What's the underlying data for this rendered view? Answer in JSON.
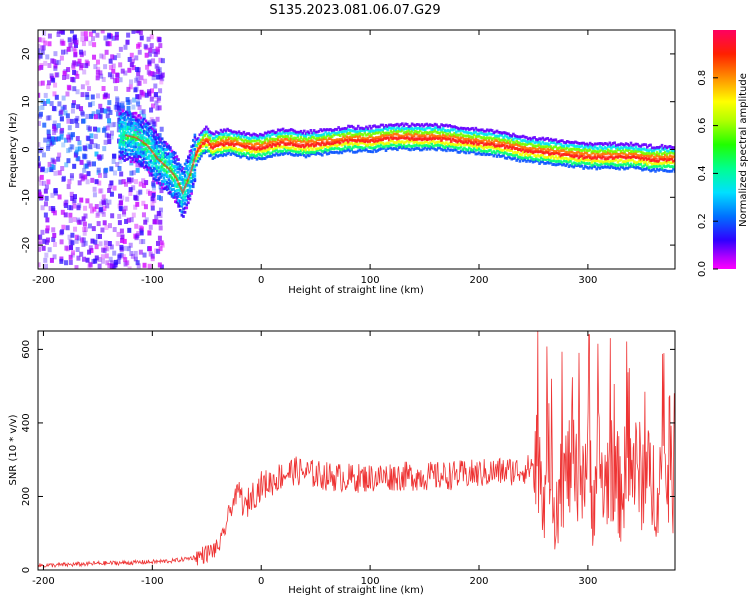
{
  "figure_title": "S135.2023.081.06.07.G29",
  "chart_data": [
    {
      "type": "heatmap",
      "title": "",
      "xlabel": "Height of straight line (km)",
      "ylabel": "Frequency (Hz)",
      "xlim": [
        -205,
        380
      ],
      "ylim": [
        -25,
        25
      ],
      "xticks": [
        -200,
        -100,
        0,
        100,
        200,
        300
      ],
      "yticks": [
        -20,
        -10,
        0,
        10,
        20
      ],
      "colorbar": {
        "label": "Normalized spectral amplitude",
        "range": [
          0.0,
          1.0
        ],
        "ticks": [
          0.0,
          0.2,
          0.4,
          0.6,
          0.8
        ],
        "tick_labels": [
          "0.0",
          "0.2",
          "0.4",
          "0.6",
          "0.8"
        ],
        "colormap": "gist_rainbow_r"
      },
      "main_trace": {
        "description_note": "Doppler frequency ridge (Hz) vs height (km)",
        "x": [
          -125,
          -115,
          -105,
          -95,
          -85,
          -78,
          -72,
          -65,
          -60,
          -55,
          -50,
          -45,
          -40,
          -30,
          -20,
          -10,
          0,
          10,
          20,
          40,
          60,
          80,
          100,
          120,
          140,
          160,
          180,
          200,
          220,
          240,
          260,
          280,
          300,
          320,
          340,
          360,
          378
        ],
        "y": [
          3,
          2.5,
          1,
          -2,
          -4,
          -6,
          -9,
          -5,
          -1,
          1,
          2,
          0.5,
          1,
          1.5,
          1,
          0.5,
          0.5,
          1,
          1.5,
          1,
          1.5,
          2,
          2,
          2.5,
          2.5,
          2.5,
          2,
          1.5,
          1,
          0,
          -0.5,
          -1,
          -1.5,
          -1.5,
          -1.5,
          -2,
          -2
        ]
      }
    },
    {
      "type": "line",
      "title": "",
      "xlabel": "Height of straight line (km)",
      "ylabel": "SNR (10 * v/v)",
      "xlim": [
        -205,
        380
      ],
      "ylim": [
        0,
        650
      ],
      "xticks": [
        -200,
        -100,
        0,
        100,
        200,
        300
      ],
      "yticks": [
        0,
        200,
        400,
        600
      ],
      "color": "#ee3333",
      "series": [
        {
          "x": [
            -205,
            -180,
            -150,
            -120,
            -100,
            -80,
            -60,
            -50,
            -40,
            -35,
            -30,
            -25,
            -20,
            -15,
            -10,
            -5,
            0,
            10,
            20,
            30,
            40,
            50,
            60,
            80,
            100,
            120,
            140,
            160,
            180,
            200,
            220,
            235,
            245,
            250,
            255,
            260,
            265,
            270,
            275,
            280,
            285,
            290,
            295,
            300,
            305,
            310,
            315,
            320,
            325,
            330,
            340,
            350,
            360,
            370,
            378
          ],
          "y": [
            12,
            14,
            18,
            20,
            22,
            25,
            35,
            45,
            60,
            90,
            150,
            190,
            220,
            160,
            200,
            210,
            230,
            240,
            260,
            270,
            265,
            260,
            255,
            250,
            250,
            255,
            255,
            255,
            258,
            262,
            268,
            270,
            275,
            290,
            300,
            230,
            320,
            180,
            260,
            250,
            300,
            220,
            280,
            300,
            200,
            310,
            210,
            290,
            240,
            220,
            290,
            250,
            230,
            260,
            240
          ]
        }
      ],
      "annotations_note": "Noisy oscillation with spikes up to ~640 near x=300"
    }
  ]
}
